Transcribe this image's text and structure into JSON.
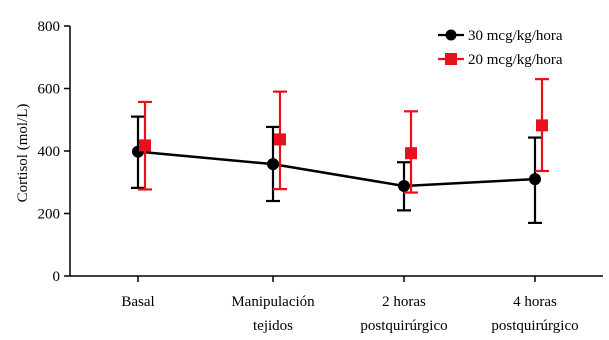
{
  "chart_data": {
    "type": "line",
    "ylabel": "Cortisol (mol/L)",
    "xlabel": "",
    "ylim": [
      0,
      800
    ],
    "yticks": [
      "0",
      "200",
      "400",
      "600",
      "800"
    ],
    "grid": false,
    "legend_position": "top-right",
    "categories": [
      [
        "Basal"
      ],
      [
        "Manipulación",
        "tejidos"
      ],
      [
        "2 horas",
        "postquirúrgico"
      ],
      [
        "4 horas",
        "postquirúrgico"
      ]
    ],
    "series": [
      {
        "name": "30 mcg/kg/hora",
        "color": "#000000",
        "marker": "circle",
        "line": true,
        "values": [
          398,
          358,
          288,
          310
        ],
        "error_low": [
          282,
          240,
          210,
          170
        ],
        "error_high": [
          510,
          477,
          364,
          443
        ]
      },
      {
        "name": "20 mcg/kg/hora",
        "color": "#e8101a",
        "marker": "square",
        "line": false,
        "values": [
          418,
          437,
          393,
          482
        ],
        "error_low": [
          277,
          278,
          267,
          336
        ],
        "error_high": [
          557,
          590,
          527,
          630
        ]
      }
    ]
  }
}
